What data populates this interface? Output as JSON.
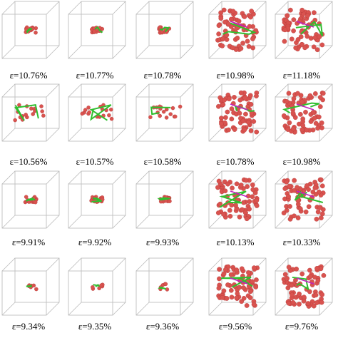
{
  "panels": [
    [
      "ε=10.76%",
      "ε=10.77%",
      "ε=10.78%",
      "ε=10.98%",
      "ε=11.18%"
    ],
    [
      "ε=10.56%",
      "ε=10.57%",
      "ε=10.58%",
      "ε=10.78%",
      "ε=10.98%"
    ],
    [
      "ε=9.91%",
      "ε=9.92%",
      "ε=9.93%",
      "ε=10.13%",
      "ε=10.33%"
    ],
    [
      "ε=9.34%",
      "ε=9.35%",
      "ε=9.36%",
      "ε=9.56%",
      "ε=9.76%"
    ]
  ]
}
